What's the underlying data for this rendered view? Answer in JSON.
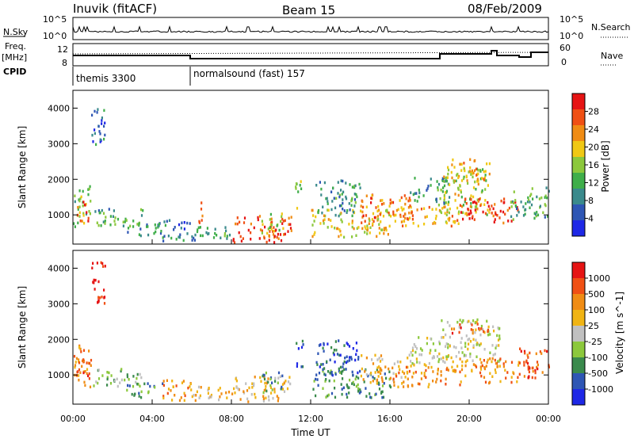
{
  "header": {
    "title": "Inuvik (fitACF)",
    "beam": "Beam 15",
    "date": "08/Feb/2009"
  },
  "summary": {
    "nsky_label": "N.Sky",
    "nsky_ticks": [
      "10^5",
      "10^0"
    ],
    "nsearch_label": "N.Search",
    "nsearch_ticks": [
      "10^5",
      "10^0"
    ],
    "freq_label": "Freq.",
    "freq_unit": "[MHz]",
    "freq_ticks": [
      "12",
      "8"
    ],
    "nave_label": "Nave",
    "nave_ticks": [
      "60",
      "0"
    ],
    "cpid_label": "CPID",
    "programs": [
      {
        "name": "themis 3300",
        "start": "00:00"
      },
      {
        "name": "normalsound (fast) 157",
        "start": "06:00"
      }
    ]
  },
  "colors": {
    "power": [
      "#1e28e6",
      "#2e56b4",
      "#3a8a8c",
      "#3fae4a",
      "#8cc83c",
      "#f0c814",
      "#f08c14",
      "#f05014",
      "#e61414"
    ],
    "velocity": [
      "#e61414",
      "#f05014",
      "#f08c14",
      "#f0b414",
      "#c0c0c0",
      "#8cc83c",
      "#3a8a4c",
      "#2e56b4",
      "#1e28e6"
    ]
  },
  "chart_data": [
    {
      "type": "heatmap",
      "title": "Power",
      "xlabel": "",
      "ylabel": "Slant Range [km]",
      "ylim": [
        180,
        4500
      ],
      "yticks": [
        "1000",
        "2000",
        "3000",
        "4000"
      ],
      "colorbar_label": "Power [dB]",
      "colorbar_ticks": [
        "4",
        "8",
        "12",
        "16",
        "20",
        "24",
        "28"
      ],
      "colorbar_range": [
        0,
        32
      ],
      "regions": [
        {
          "x": [
            0.0,
            0.9
          ],
          "y": [
            700,
            1900
          ],
          "v": 14
        },
        {
          "x": [
            0.2,
            0.8
          ],
          "y": [
            800,
            1400
          ],
          "v": 28
        },
        {
          "x": [
            0.9,
            1.6
          ],
          "y": [
            3000,
            4200
          ],
          "v": 6
        },
        {
          "x": [
            1.0,
            3.5
          ],
          "y": [
            700,
            1200
          ],
          "v": 12
        },
        {
          "x": [
            2.5,
            4.5
          ],
          "y": [
            400,
            800
          ],
          "v": 10
        },
        {
          "x": [
            4.5,
            6.2
          ],
          "y": [
            300,
            900
          ],
          "v": 8
        },
        {
          "x": [
            6.3,
            6.5
          ],
          "y": [
            700,
            1700
          ],
          "v": 24
        },
        {
          "x": [
            6.0,
            8.0
          ],
          "y": [
            300,
            700
          ],
          "v": 12
        },
        {
          "x": [
            8.0,
            11.0
          ],
          "y": [
            250,
            1000
          ],
          "v": 28
        },
        {
          "x": [
            9.5,
            10.6
          ],
          "y": [
            500,
            1100
          ],
          "v": 16
        },
        {
          "x": [
            11.2,
            11.6
          ],
          "y": [
            1200,
            2000
          ],
          "v": 14
        },
        {
          "x": [
            12.0,
            16.0
          ],
          "y": [
            400,
            1200
          ],
          "v": 20
        },
        {
          "x": [
            12.2,
            14.5
          ],
          "y": [
            1000,
            2000
          ],
          "v": 10
        },
        {
          "x": [
            14.5,
            17.0
          ],
          "y": [
            800,
            1600
          ],
          "v": 24
        },
        {
          "x": [
            16.0,
            19.5
          ],
          "y": [
            700,
            1300
          ],
          "v": 22
        },
        {
          "x": [
            17.0,
            19.0
          ],
          "y": [
            1300,
            2100
          ],
          "v": 10
        },
        {
          "x": [
            18.5,
            21.0
          ],
          "y": [
            1000,
            2400
          ],
          "v": 18
        },
        {
          "x": [
            19.5,
            22.5
          ],
          "y": [
            800,
            1500
          ],
          "v": 28
        },
        {
          "x": [
            19.0,
            21.0
          ],
          "y": [
            2000,
            2600
          ],
          "v": 22
        },
        {
          "x": [
            22.0,
            24.0
          ],
          "y": [
            900,
            1800
          ],
          "v": 12
        }
      ]
    },
    {
      "type": "heatmap",
      "title": "Velocity",
      "xlabel": "Time UT",
      "ylabel": "Slant Range [km]",
      "ylim": [
        180,
        4500
      ],
      "yticks": [
        "1000",
        "2000",
        "3000",
        "4000"
      ],
      "xticks": [
        "00:00",
        "04:00",
        "08:00",
        "12:00",
        "16:00",
        "20:00",
        "00:00"
      ],
      "colorbar_label": "Velocity [m s^-1]",
      "colorbar_ticks": [
        "1000",
        "500",
        "100",
        "25",
        "-25",
        "-100",
        "-500",
        "-1000"
      ],
      "regions": [
        {
          "x": [
            0.0,
            0.9
          ],
          "y": [
            700,
            1900
          ],
          "v": 2
        },
        {
          "x": [
            0.1,
            1.0
          ],
          "y": [
            900,
            1500
          ],
          "v": 1
        },
        {
          "x": [
            0.9,
            1.6
          ],
          "y": [
            3000,
            4200
          ],
          "v": 0
        },
        {
          "x": [
            1.0,
            3.5
          ],
          "y": [
            700,
            1200
          ],
          "v": 5
        },
        {
          "x": [
            2.5,
            4.5
          ],
          "y": [
            400,
            800
          ],
          "v": 6
        },
        {
          "x": [
            4.5,
            6.2
          ],
          "y": [
            300,
            900
          ],
          "v": 2
        },
        {
          "x": [
            6.0,
            8.0
          ],
          "y": [
            300,
            700
          ],
          "v": 3
        },
        {
          "x": [
            8.0,
            11.0
          ],
          "y": [
            250,
            1000
          ],
          "v": 3
        },
        {
          "x": [
            9.5,
            10.6
          ],
          "y": [
            500,
            1100
          ],
          "v": 6
        },
        {
          "x": [
            11.2,
            11.6
          ],
          "y": [
            1200,
            2000
          ],
          "v": 7
        },
        {
          "x": [
            12.0,
            16.0
          ],
          "y": [
            400,
            1200
          ],
          "v": 6
        },
        {
          "x": [
            12.2,
            14.5
          ],
          "y": [
            1000,
            2000
          ],
          "v": 7
        },
        {
          "x": [
            14.5,
            17.0
          ],
          "y": [
            800,
            1600
          ],
          "v": 3
        },
        {
          "x": [
            16.0,
            19.5
          ],
          "y": [
            700,
            1300
          ],
          "v": 2
        },
        {
          "x": [
            17.0,
            19.0
          ],
          "y": [
            1300,
            2100
          ],
          "v": 4
        },
        {
          "x": [
            18.5,
            21.5
          ],
          "y": [
            1400,
            2600
          ],
          "v": 4
        },
        {
          "x": [
            19.5,
            22.5
          ],
          "y": [
            800,
            1500
          ],
          "v": 2
        },
        {
          "x": [
            19.0,
            21.0
          ],
          "y": [
            2200,
            2500
          ],
          "v": 1
        },
        {
          "x": [
            22.5,
            24.0
          ],
          "y": [
            800,
            1800
          ],
          "v": 1
        }
      ]
    }
  ]
}
